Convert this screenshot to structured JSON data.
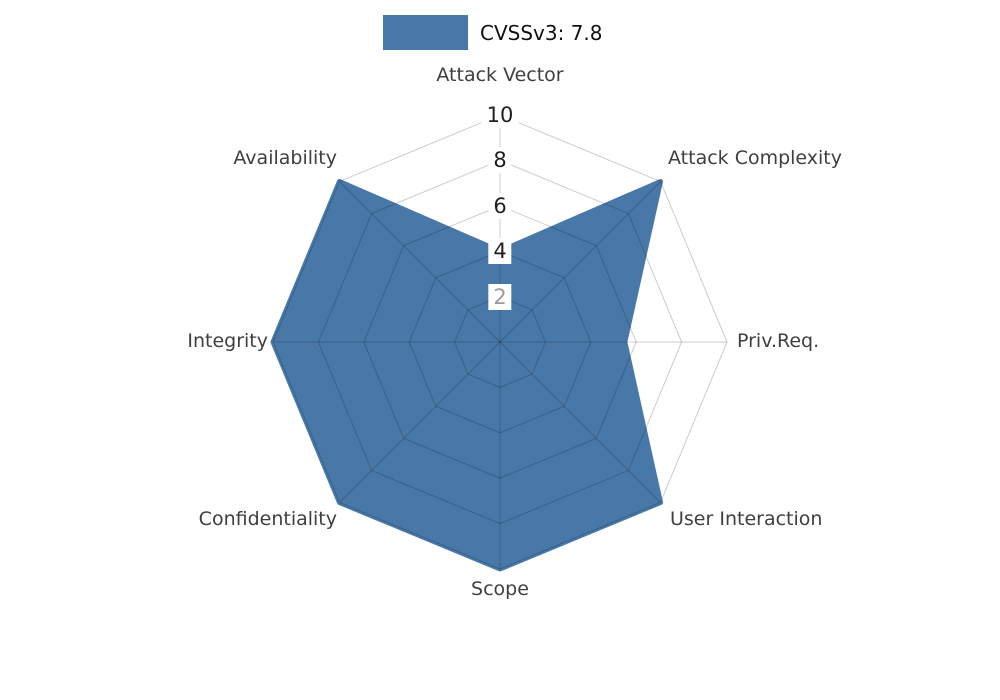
{
  "legend": {
    "label": "CVSSv3: 7.8",
    "swatch_color": "#4878a8"
  },
  "chart_data": {
    "type": "radar",
    "categories": [
      "Attack Vector",
      "Attack Complexity",
      "Priv.Req.",
      "User Interaction",
      "Scope",
      "Confidentiality",
      "Integrity",
      "Availability"
    ],
    "series": [
      {
        "name": "CVSSv3: 7.8",
        "values": [
          4,
          10,
          5.5,
          10,
          10,
          10,
          10,
          10
        ]
      }
    ],
    "ticks": [
      2,
      4,
      6,
      8,
      10
    ],
    "rmin": 0,
    "rmax": 10,
    "legend_position": "top",
    "grid": "on",
    "colors": {
      "fill": "#4878a8",
      "grid": "rgba(0,0,0,0.2)",
      "axis_label": "#3f3f3f",
      "tick_label": "#1f1f1f",
      "tick_label_dim": "#9a9a9a"
    }
  }
}
